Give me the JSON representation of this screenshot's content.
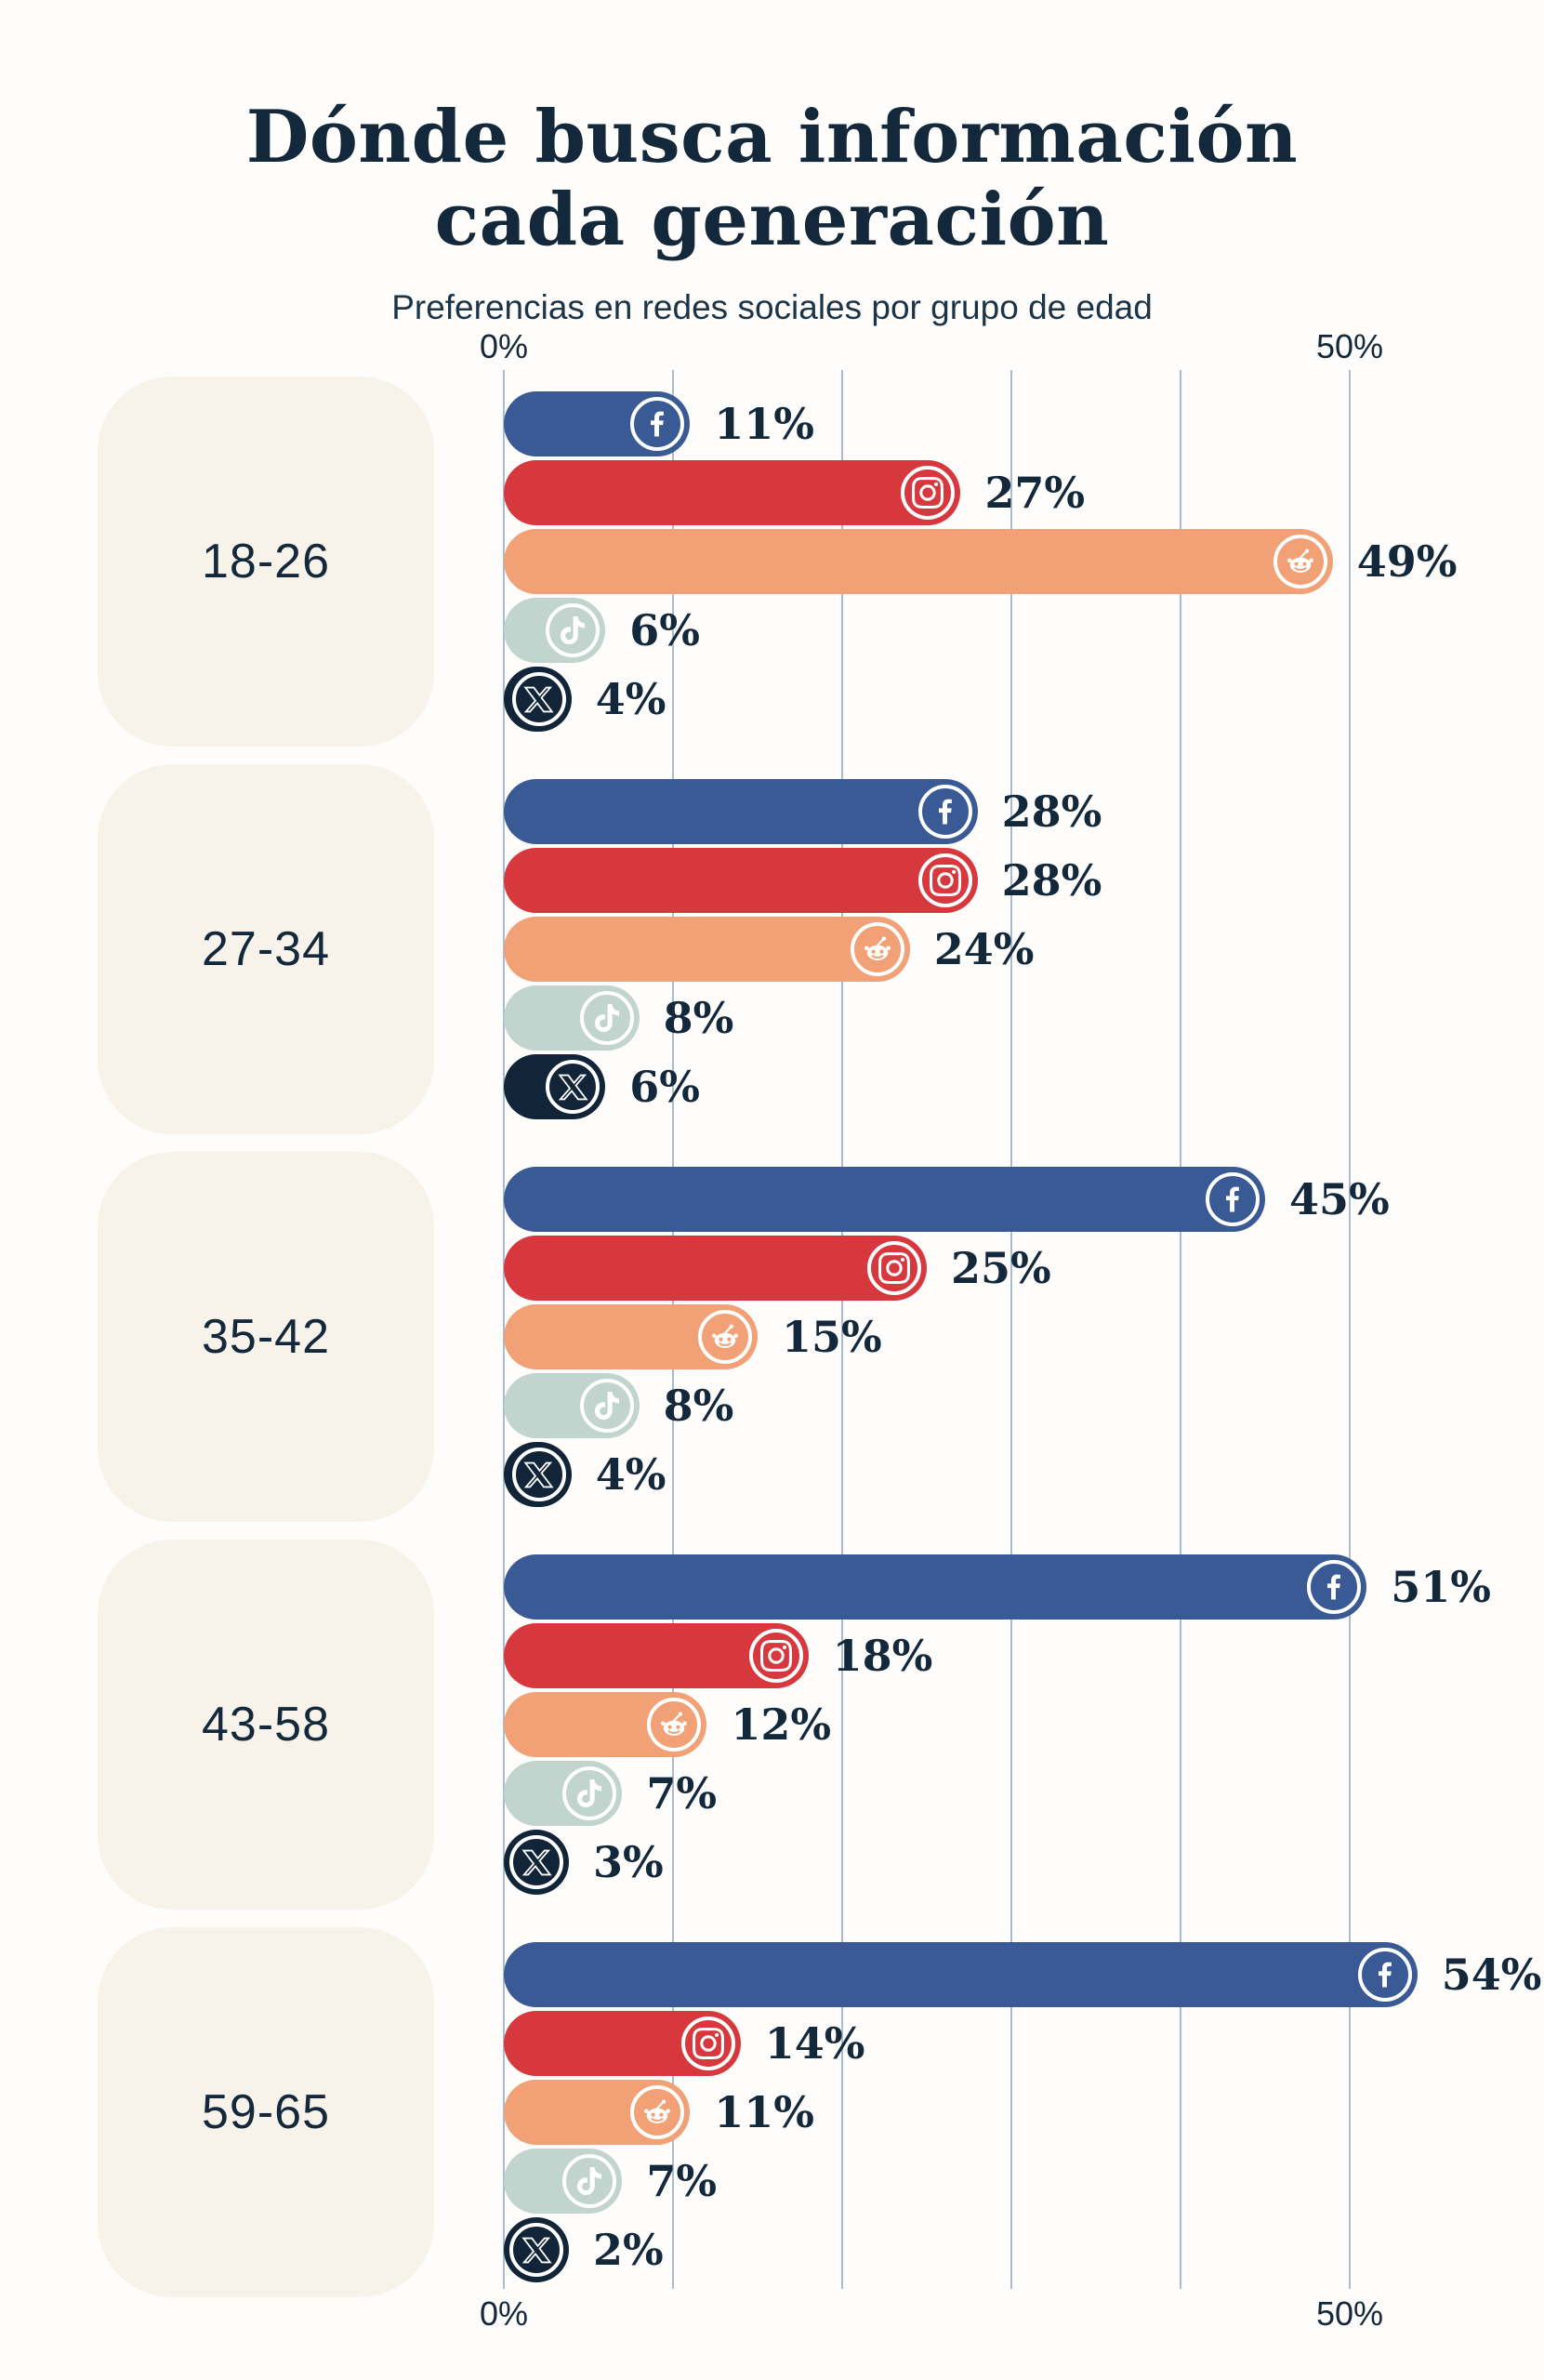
{
  "title": {
    "line1": "Dónde busca información",
    "line2": "cada generación"
  },
  "subtitle": "Preferencias en redes sociales por grupo de edad",
  "axis": {
    "min_label": "0%",
    "max_label": "50%"
  },
  "colors": {
    "background": "#FEFDFB",
    "text_navy": "#14283C",
    "gridline": "#A8BCD2",
    "age_box_bg": "#F7F3EA",
    "facebook": "#3A5A96",
    "instagram": "#D6383E",
    "reddit": "#F2A075",
    "tiktok": "#C2D4CE",
    "x": "#112438"
  },
  "chart_data": {
    "type": "bar",
    "orientation": "horizontal",
    "unit": "%",
    "xlim": [
      0,
      50
    ],
    "grid": true,
    "gridlines_pct": [
      0,
      10,
      20,
      30,
      40,
      50
    ],
    "title": "Dónde busca información cada generación",
    "subtitle": "Preferencias en redes sociales por grupo de edad",
    "platforms": [
      {
        "name": "Facebook",
        "icon": "facebook-icon",
        "color": "#3A5A96"
      },
      {
        "name": "Instagram",
        "icon": "instagram-icon",
        "color": "#D6383E"
      },
      {
        "name": "Reddit",
        "icon": "reddit-icon",
        "color": "#F2A075"
      },
      {
        "name": "TikTok",
        "icon": "tiktok-icon",
        "color": "#C2D4CE"
      },
      {
        "name": "X",
        "icon": "x-icon",
        "color": "#112438"
      }
    ],
    "groups": [
      {
        "label": "18-26",
        "values": [
          11,
          27,
          49,
          6,
          4
        ]
      },
      {
        "label": "27-34",
        "values": [
          28,
          28,
          24,
          8,
          6
        ]
      },
      {
        "label": "35-42",
        "values": [
          45,
          25,
          15,
          8,
          4
        ]
      },
      {
        "label": "43-58",
        "values": [
          51,
          18,
          12,
          7,
          3
        ]
      },
      {
        "label": "59-65",
        "values": [
          54,
          14,
          11,
          7,
          2
        ]
      }
    ]
  }
}
